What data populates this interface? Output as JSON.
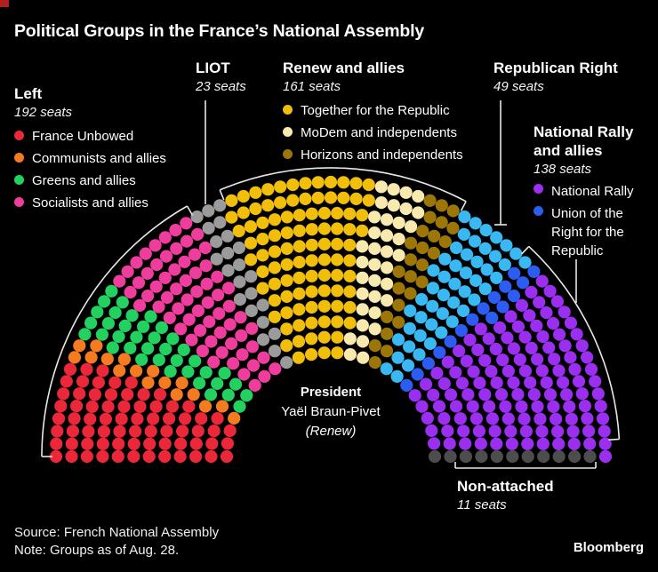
{
  "accent_red": "#b0201f",
  "title": "Political Groups in the France’s National Assembly",
  "legend": {
    "left": {
      "name": "Left",
      "seats": "192 seats",
      "items": [
        {
          "label": "France Unbowed",
          "color": "#ea2839"
        },
        {
          "label": "Communists and allies",
          "color": "#f57b20"
        },
        {
          "label": "Greens and allies",
          "color": "#23d160"
        },
        {
          "label": "Socialists and allies",
          "color": "#ee3d9d"
        }
      ]
    },
    "liot": {
      "name": "LIOT",
      "seats": "23 seats"
    },
    "renew": {
      "name": "Renew and allies",
      "seats": "161 seats",
      "items": [
        {
          "label": "Together for the Republic",
          "color": "#f1be0b"
        },
        {
          "label": "MoDem and independents",
          "color": "#f8e9ae"
        },
        {
          "label": "Horizons and independents",
          "color": "#9d7608"
        }
      ]
    },
    "republican_right": {
      "name": "Republican Right",
      "seats": "49 seats"
    },
    "national_rally": {
      "name_line1": "National Rally",
      "name_line2": "and allies",
      "seats": "138 seats",
      "items": [
        {
          "label": "National Rally",
          "color": "#9a2ff0"
        },
        {
          "label": "Union of the Right for the Republic",
          "color": "#2c5cf2"
        }
      ]
    },
    "non_attached": {
      "name": "Non-attached",
      "seats": "11 seats"
    }
  },
  "president": {
    "title": "President",
    "name": "Yaël Braun-Pivet",
    "party": "(Renew)"
  },
  "source": "Source: French National Assembly",
  "note": "Note: Groups as of Aug. 28.",
  "brand": "Bloomberg",
  "chart_data": {
    "type": "parliament",
    "title": "Political Groups in the France’s National Assembly",
    "total_seats": 574,
    "rows": 12,
    "seat_ordering": "by-angle-left-to-right",
    "groups": [
      {
        "name": "Left",
        "seats": 192,
        "parties": [
          {
            "name": "France Unbowed",
            "seats": 71,
            "color": "#ea2839"
          },
          {
            "name": "Communists and allies",
            "seats": 17,
            "color": "#f57b20"
          },
          {
            "name": "Greens and allies",
            "seats": 38,
            "color": "#23d160"
          },
          {
            "name": "Socialists and allies",
            "seats": 66,
            "color": "#ee3d9d"
          }
        ]
      },
      {
        "name": "LIOT",
        "seats": 23,
        "parties": [
          {
            "name": "LIOT",
            "seats": 23,
            "color": "#9b9b9b"
          }
        ]
      },
      {
        "name": "Renew and allies",
        "seats": 161,
        "parties": [
          {
            "name": "Together for the Republic",
            "seats": 99,
            "color": "#f1be0b"
          },
          {
            "name": "MoDem and independents",
            "seats": 36,
            "color": "#f8e9ae"
          },
          {
            "name": "Horizons and independents",
            "seats": 26,
            "color": "#9d7608"
          }
        ]
      },
      {
        "name": "Republican Right",
        "seats": 49,
        "parties": [
          {
            "name": "Republican Right",
            "seats": 49,
            "color": "#39b8f2"
          }
        ]
      },
      {
        "name": "National Rally and allies",
        "seats": 138,
        "parties": [
          {
            "name": "Union of the Right for the Republic",
            "seats": 16,
            "color": "#2c5cf2"
          },
          {
            "name": "National Rally",
            "seats": 122,
            "color": "#9a2ff0"
          }
        ]
      },
      {
        "name": "Non-attached",
        "seats": 11,
        "parties": [
          {
            "name": "Non-attached",
            "seats": 11,
            "color": "#4d4d4d"
          }
        ]
      }
    ],
    "annotation_color": "#e8e8e8"
  }
}
